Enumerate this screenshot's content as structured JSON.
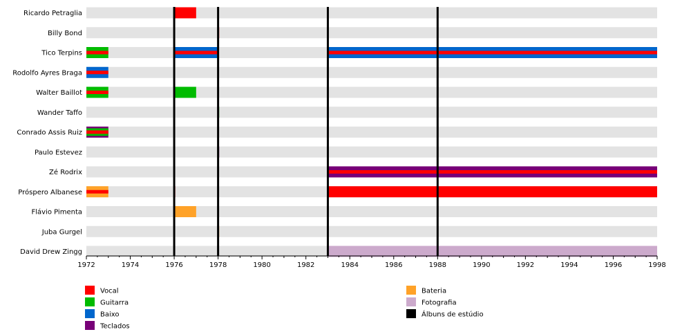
{
  "chart_data": {
    "type": "timeline",
    "title": "",
    "xlim": [
      1972,
      1998
    ],
    "x_ticks": [
      "1972",
      "1974",
      "1976",
      "1978",
      "1980",
      "1982",
      "1984",
      "1986",
      "1988",
      "1990",
      "1992",
      "1994",
      "1996",
      "1998"
    ],
    "colors": {
      "Vocal": "#ff0000",
      "Guitarra": "#00bb00",
      "Baixo": "#0066cc",
      "Teclados": "#770077",
      "Bateria": "#ffa228",
      "Fotografia": "#ccaacc",
      "Álbuns de estúdio": "#000000",
      "track": "#e3e3e3"
    },
    "members": [
      {
        "name": "Ricardo Petraglia",
        "periods": [
          {
            "start": 1976,
            "end": 1977,
            "roles": [
              "Vocal"
            ]
          }
        ]
      },
      {
        "name": "Billy Bond",
        "periods": [
          {
            "start": 1978,
            "end": 1978.05,
            "roles": [
              "Vocal"
            ]
          }
        ]
      },
      {
        "name": "Tico Terpins",
        "periods": [
          {
            "start": 1972,
            "end": 1973,
            "roles": [
              "Guitarra",
              "Vocal"
            ]
          },
          {
            "start": 1976,
            "end": 1978,
            "roles": [
              "Baixo",
              "Vocal"
            ]
          },
          {
            "start": 1983,
            "end": 1998,
            "roles": [
              "Baixo",
              "Vocal"
            ]
          }
        ]
      },
      {
        "name": "Rodolfo Ayres Braga",
        "periods": [
          {
            "start": 1972,
            "end": 1973,
            "roles": [
              "Baixo",
              "Vocal"
            ]
          }
        ]
      },
      {
        "name": "Walter Baillot",
        "periods": [
          {
            "start": 1972,
            "end": 1973,
            "roles": [
              "Guitarra",
              "Vocal"
            ]
          },
          {
            "start": 1976,
            "end": 1977,
            "roles": [
              "Guitarra"
            ]
          }
        ]
      },
      {
        "name": "Wander Taffo",
        "periods": [
          {
            "start": 1978,
            "end": 1978.05,
            "roles": [
              "Guitarra"
            ]
          }
        ]
      },
      {
        "name": "Conrado Assis Ruiz",
        "periods": [
          {
            "start": 1972,
            "end": 1973,
            "roles": [
              "Teclados",
              "Guitarra",
              "Vocal"
            ]
          }
        ]
      },
      {
        "name": "Paulo Estevez",
        "periods": [
          {
            "start": 1978,
            "end": 1978.05,
            "roles": [
              "Teclados"
            ]
          }
        ]
      },
      {
        "name": "Zé Rodrix",
        "periods": [
          {
            "start": 1983,
            "end": 1998,
            "roles": [
              "Teclados",
              "Vocal"
            ]
          }
        ]
      },
      {
        "name": "Próspero Albanese",
        "periods": [
          {
            "start": 1972,
            "end": 1973,
            "roles": [
              "Bateria",
              "Vocal"
            ]
          },
          {
            "start": 1976,
            "end": 1976.05,
            "roles": [
              "Vocal"
            ]
          },
          {
            "start": 1983,
            "end": 1998,
            "roles": [
              "Vocal"
            ]
          }
        ]
      },
      {
        "name": "Flávio Pimenta",
        "periods": [
          {
            "start": 1976,
            "end": 1977,
            "roles": [
              "Bateria"
            ]
          }
        ]
      },
      {
        "name": "Juba Gurgel",
        "periods": [
          {
            "start": 1978,
            "end": 1978.05,
            "roles": [
              "Bateria"
            ]
          }
        ]
      },
      {
        "name": "David Drew Zingg",
        "periods": [
          {
            "start": 1983,
            "end": 1998,
            "roles": [
              "Fotografia"
            ]
          }
        ]
      }
    ],
    "albums": [
      1976,
      1978,
      1983,
      1988
    ],
    "legend": [
      {
        "label": "Vocal",
        "color": "#ff0000"
      },
      {
        "label": "Guitarra",
        "color": "#00bb00"
      },
      {
        "label": "Baixo",
        "color": "#0066cc"
      },
      {
        "label": "Teclados",
        "color": "#770077"
      },
      {
        "label": "Bateria",
        "color": "#ffa228"
      },
      {
        "label": "Fotografia",
        "color": "#ccaacc"
      },
      {
        "label": "Álbuns de estúdio",
        "color": "#000000"
      }
    ]
  }
}
